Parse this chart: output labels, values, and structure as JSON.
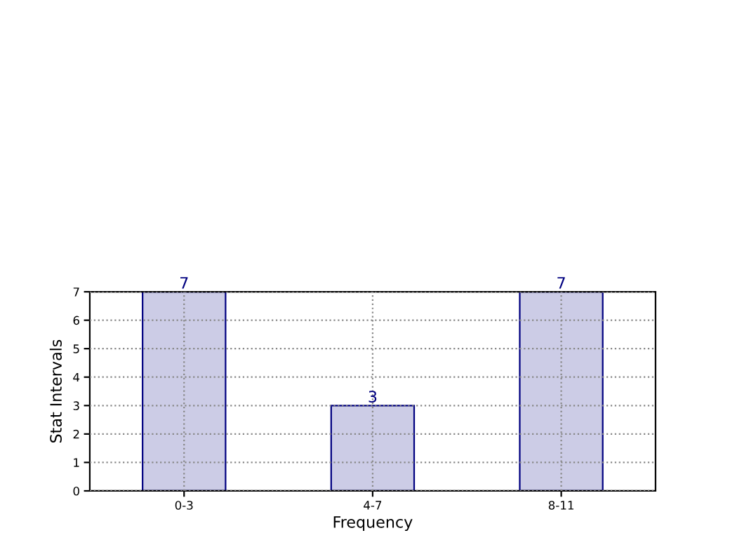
{
  "chart_data": {
    "type": "bar",
    "xlabel": "Frequency",
    "ylabel": "Stat Intervals",
    "categories": [
      "0-3",
      "4-7",
      "8-11"
    ],
    "values": [
      7,
      3,
      7
    ],
    "color": "#cccce6",
    "ylim": [
      0,
      7
    ],
    "yticks": [
      0,
      1,
      2,
      3,
      4,
      5,
      6,
      7
    ],
    "grid": true,
    "data_labels": true,
    "line_style": "dotted"
  }
}
